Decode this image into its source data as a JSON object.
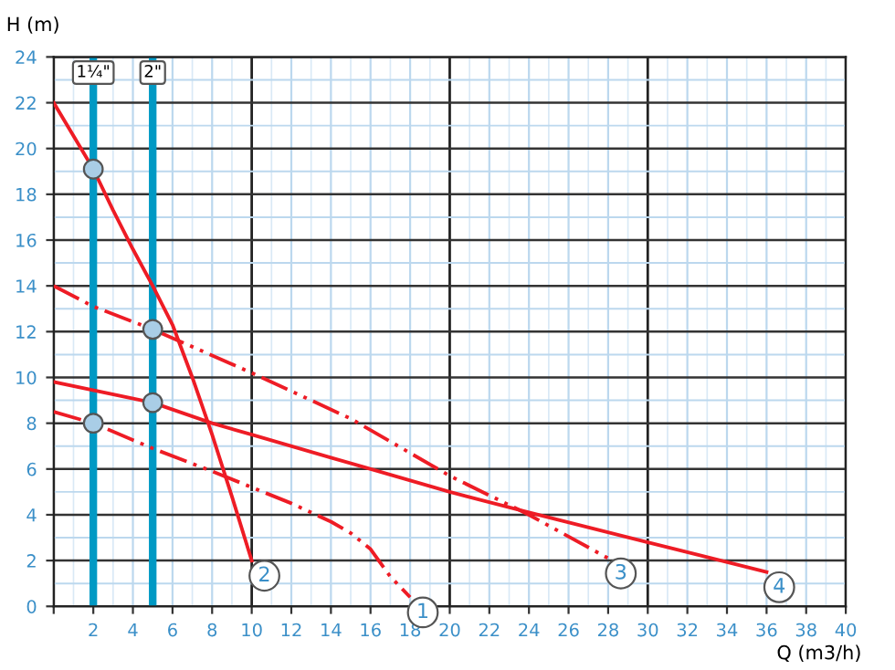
{
  "chart_data": {
    "type": "line",
    "xlabel": "Q (m3/h)",
    "ylabel": "H (m)",
    "xlim": [
      0,
      40
    ],
    "ylim": [
      0,
      24
    ],
    "xticks": [
      {
        "value": 0,
        "label": null
      },
      2,
      4,
      6,
      8,
      10,
      12,
      14,
      16,
      18,
      20,
      22,
      24,
      26,
      28,
      30,
      32,
      34,
      36,
      38,
      40
    ],
    "yticks": [
      0,
      2,
      4,
      6,
      8,
      10,
      12,
      14,
      16,
      18,
      20,
      22,
      24
    ],
    "grid": true,
    "legend": false,
    "marker": "none",
    "ref_lines": [
      {
        "axis": "x",
        "value": 2,
        "color": "#0099c4"
      },
      {
        "axis": "x",
        "value": 5,
        "color": "#0099c4"
      }
    ],
    "annotations": [
      {
        "text": "1¼\"",
        "x": 2,
        "y": 24
      },
      {
        "text": "2\"",
        "x": 5,
        "y": 24
      }
    ],
    "series": [
      {
        "name": "1",
        "color": "#ee1c25",
        "line_style": "dashdot",
        "x": [
          0,
          2,
          5,
          8,
          10,
          12,
          14,
          15,
          16,
          17,
          18
        ],
        "values": [
          8.5,
          8,
          6.9,
          5.9,
          5.2,
          4.5,
          3.7,
          3.2,
          2.5,
          1.3,
          0.4
        ]
      },
      {
        "name": "2",
        "color": "#ee1c25",
        "line_style": "solid",
        "x": [
          0,
          2,
          3,
          4,
          5,
          6,
          7,
          8,
          9,
          10
        ],
        "values": [
          22,
          19.1,
          17.3,
          15.6,
          14,
          12.3,
          10,
          7.5,
          4.8,
          2
        ]
      },
      {
        "name": "3",
        "color": "#ee1c25",
        "line_style": "dashdot",
        "x": [
          0,
          2,
          5,
          10,
          15,
          20,
          24,
          28
        ],
        "values": [
          14,
          13.1,
          12.1,
          10.2,
          8.2,
          5.7,
          4,
          2.1
        ]
      },
      {
        "name": "4",
        "color": "#ee1c25",
        "line_style": "solid",
        "x": [
          0,
          5,
          8,
          10,
          14,
          20,
          24,
          30,
          36
        ],
        "values": [
          9.8,
          8.9,
          8,
          7.5,
          6.5,
          5,
          4.1,
          2.8,
          1.5
        ]
      },
      {
        "type": "scatter",
        "marker": "circle",
        "color": "#a9cde6",
        "x": [
          2,
          2,
          5,
          5
        ],
        "values": [
          19.1,
          8,
          12.1,
          8.9
        ]
      }
    ]
  }
}
